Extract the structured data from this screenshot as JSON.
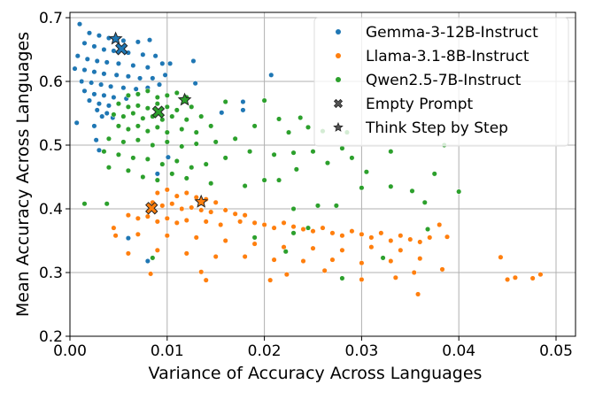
{
  "chart_data": {
    "type": "scatter",
    "xlabel": "Variance of Accuracy Across Languages",
    "ylabel": "Mean Accuracy Across Languages",
    "xlim": [
      0.0,
      0.0505
    ],
    "ylim": [
      0.2,
      0.708
    ],
    "xticks": [
      "0.00",
      "0.01",
      "0.02",
      "0.03",
      "0.04",
      "0.05"
    ],
    "yticks": [
      "0.2",
      "0.3",
      "0.4",
      "0.5",
      "0.6",
      "0.7"
    ],
    "grid": true,
    "legend_placement": "top-right",
    "series": [
      {
        "name": "Gemma-3-12B-Instruct",
        "color": "#1f77b4",
        "points": [
          [
            0.001,
            0.69
          ],
          [
            0.002,
            0.676
          ],
          [
            0.003,
            0.672
          ],
          [
            0.004,
            0.668
          ],
          [
            0.0055,
            0.664
          ],
          [
            0.007,
            0.662
          ],
          [
            0.0082,
            0.665
          ],
          [
            0.0015,
            0.66
          ],
          [
            0.0025,
            0.655
          ],
          [
            0.0035,
            0.65
          ],
          [
            0.0045,
            0.648
          ],
          [
            0.006,
            0.645
          ],
          [
            0.0075,
            0.642
          ],
          [
            0.0088,
            0.64
          ],
          [
            0.0008,
            0.64
          ],
          [
            0.0018,
            0.635
          ],
          [
            0.0028,
            0.632
          ],
          [
            0.0038,
            0.63
          ],
          [
            0.005,
            0.628
          ],
          [
            0.0065,
            0.625
          ],
          [
            0.008,
            0.622
          ],
          [
            0.0095,
            0.628
          ],
          [
            0.0103,
            0.628
          ],
          [
            0.0005,
            0.62
          ],
          [
            0.0015,
            0.618
          ],
          [
            0.0025,
            0.615
          ],
          [
            0.0035,
            0.612
          ],
          [
            0.0048,
            0.61
          ],
          [
            0.006,
            0.608
          ],
          [
            0.0072,
            0.605
          ],
          [
            0.0085,
            0.605
          ],
          [
            0.0098,
            0.61
          ],
          [
            0.0012,
            0.6
          ],
          [
            0.0022,
            0.598
          ],
          [
            0.0032,
            0.595
          ],
          [
            0.0042,
            0.592
          ],
          [
            0.0055,
            0.59
          ],
          [
            0.0068,
            0.588
          ],
          [
            0.008,
            0.59
          ],
          [
            0.0092,
            0.595
          ],
          [
            0.0015,
            0.585
          ],
          [
            0.0025,
            0.58
          ],
          [
            0.0035,
            0.578
          ],
          [
            0.0045,
            0.575
          ],
          [
            0.0058,
            0.573
          ],
          [
            0.007,
            0.58
          ],
          [
            0.002,
            0.57
          ],
          [
            0.003,
            0.565
          ],
          [
            0.004,
            0.562
          ],
          [
            0.0028,
            0.555
          ],
          [
            0.0038,
            0.55
          ],
          [
            0.0033,
            0.545
          ],
          [
            0.0044,
            0.543
          ],
          [
            0.0025,
            0.53
          ],
          [
            0.0007,
            0.535
          ],
          [
            0.0027,
            0.508
          ],
          [
            0.003,
            0.492
          ],
          [
            0.0127,
            0.632
          ],
          [
            0.0129,
            0.597
          ],
          [
            0.0207,
            0.61
          ],
          [
            0.0178,
            0.568
          ],
          [
            0.0178,
            0.555
          ],
          [
            0.0156,
            0.551
          ],
          [
            0.0101,
            0.481
          ],
          [
            0.009,
            0.455
          ],
          [
            0.006,
            0.354
          ],
          [
            0.008,
            0.318
          ]
        ]
      },
      {
        "name": "Llama-3.1-8B-Instruct",
        "color": "#ff7f0e",
        "points": [
          [
            0.009,
            0.425
          ],
          [
            0.01,
            0.43
          ],
          [
            0.011,
            0.42
          ],
          [
            0.012,
            0.425
          ],
          [
            0.013,
            0.418
          ],
          [
            0.014,
            0.415
          ],
          [
            0.015,
            0.41
          ],
          [
            0.0085,
            0.41
          ],
          [
            0.0095,
            0.405
          ],
          [
            0.0105,
            0.408
          ],
          [
            0.0115,
            0.4
          ],
          [
            0.0125,
            0.402
          ],
          [
            0.0135,
            0.398
          ],
          [
            0.0145,
            0.395
          ],
          [
            0.016,
            0.398
          ],
          [
            0.017,
            0.392
          ],
          [
            0.018,
            0.39
          ],
          [
            0.006,
            0.39
          ],
          [
            0.007,
            0.385
          ],
          [
            0.008,
            0.388
          ],
          [
            0.009,
            0.38
          ],
          [
            0.01,
            0.385
          ],
          [
            0.011,
            0.378
          ],
          [
            0.012,
            0.382
          ],
          [
            0.014,
            0.38
          ],
          [
            0.0155,
            0.375
          ],
          [
            0.0175,
            0.38
          ],
          [
            0.019,
            0.378
          ],
          [
            0.02,
            0.375
          ],
          [
            0.021,
            0.37
          ],
          [
            0.022,
            0.378
          ],
          [
            0.023,
            0.372
          ],
          [
            0.024,
            0.368
          ],
          [
            0.025,
            0.365
          ],
          [
            0.026,
            0.37
          ],
          [
            0.027,
            0.362
          ],
          [
            0.028,
            0.358
          ],
          [
            0.029,
            0.365
          ],
          [
            0.03,
            0.36
          ],
          [
            0.031,
            0.355
          ],
          [
            0.032,
            0.362
          ],
          [
            0.033,
            0.35
          ],
          [
            0.034,
            0.358
          ],
          [
            0.035,
            0.352
          ],
          [
            0.036,
            0.348
          ],
          [
            0.037,
            0.355
          ],
          [
            0.038,
            0.375
          ],
          [
            0.0388,
            0.356
          ],
          [
            0.007,
            0.36
          ],
          [
            0.01,
            0.358
          ],
          [
            0.013,
            0.355
          ],
          [
            0.016,
            0.35
          ],
          [
            0.019,
            0.345
          ],
          [
            0.022,
            0.34
          ],
          [
            0.025,
            0.338
          ],
          [
            0.028,
            0.335
          ],
          [
            0.031,
            0.34
          ],
          [
            0.034,
            0.335
          ],
          [
            0.006,
            0.33
          ],
          [
            0.009,
            0.335
          ],
          [
            0.012,
            0.33
          ],
          [
            0.015,
            0.325
          ],
          [
            0.018,
            0.325
          ],
          [
            0.021,
            0.32
          ],
          [
            0.024,
            0.318
          ],
          [
            0.027,
            0.32
          ],
          [
            0.03,
            0.315
          ],
          [
            0.033,
            0.318
          ],
          [
            0.036,
            0.322
          ],
          [
            0.0045,
            0.37
          ],
          [
            0.0047,
            0.358
          ],
          [
            0.0083,
            0.298
          ],
          [
            0.014,
            0.288
          ],
          [
            0.0135,
            0.301
          ],
          [
            0.0206,
            0.288
          ],
          [
            0.0223,
            0.297
          ],
          [
            0.0262,
            0.303
          ],
          [
            0.03,
            0.289
          ],
          [
            0.0335,
            0.292
          ],
          [
            0.0354,
            0.3
          ],
          [
            0.0383,
            0.305
          ],
          [
            0.0443,
            0.324
          ],
          [
            0.045,
            0.289
          ],
          [
            0.0458,
            0.292
          ],
          [
            0.0476,
            0.291
          ],
          [
            0.0484,
            0.297
          ],
          [
            0.0358,
            0.266
          ]
        ]
      },
      {
        "name": "Qwen2.5-7B-Instruct",
        "color": "#2ca02c",
        "points": [
          [
            0.006,
            0.578
          ],
          [
            0.007,
            0.58
          ],
          [
            0.008,
            0.585
          ],
          [
            0.009,
            0.575
          ],
          [
            0.01,
            0.578
          ],
          [
            0.011,
            0.582
          ],
          [
            0.012,
            0.575
          ],
          [
            0.005,
            0.565
          ],
          [
            0.006,
            0.56
          ],
          [
            0.007,
            0.562
          ],
          [
            0.008,
            0.558
          ],
          [
            0.009,
            0.565
          ],
          [
            0.01,
            0.56
          ],
          [
            0.011,
            0.555
          ],
          [
            0.0125,
            0.56
          ],
          [
            0.0045,
            0.548
          ],
          [
            0.0055,
            0.545
          ],
          [
            0.0065,
            0.55
          ],
          [
            0.0075,
            0.542
          ],
          [
            0.0085,
            0.545
          ],
          [
            0.0095,
            0.54
          ],
          [
            0.0105,
            0.545
          ],
          [
            0.012,
            0.54
          ],
          [
            0.0135,
            0.545
          ],
          [
            0.005,
            0.53
          ],
          [
            0.006,
            0.525
          ],
          [
            0.007,
            0.53
          ],
          [
            0.008,
            0.522
          ],
          [
            0.009,
            0.528
          ],
          [
            0.01,
            0.52
          ],
          [
            0.0115,
            0.525
          ],
          [
            0.013,
            0.52
          ],
          [
            0.0145,
            0.53
          ],
          [
            0.004,
            0.51
          ],
          [
            0.0055,
            0.505
          ],
          [
            0.007,
            0.508
          ],
          [
            0.0085,
            0.5
          ],
          [
            0.01,
            0.505
          ],
          [
            0.0115,
            0.498
          ],
          [
            0.013,
            0.502
          ],
          [
            0.015,
            0.505
          ],
          [
            0.017,
            0.51
          ],
          [
            0.0035,
            0.49
          ],
          [
            0.005,
            0.485
          ],
          [
            0.0065,
            0.48
          ],
          [
            0.008,
            0.478
          ],
          [
            0.0095,
            0.47
          ],
          [
            0.011,
            0.475
          ],
          [
            0.0125,
            0.465
          ],
          [
            0.014,
            0.47
          ],
          [
            0.016,
            0.48
          ],
          [
            0.0185,
            0.49
          ],
          [
            0.004,
            0.465
          ],
          [
            0.006,
            0.46
          ],
          [
            0.0075,
            0.45
          ],
          [
            0.009,
            0.445
          ],
          [
            0.0105,
            0.455
          ],
          [
            0.012,
            0.448
          ],
          [
            0.0145,
            0.44
          ],
          [
            0.018,
            0.436
          ],
          [
            0.02,
            0.445
          ],
          [
            0.016,
            0.568
          ],
          [
            0.02,
            0.57
          ],
          [
            0.0215,
            0.541
          ],
          [
            0.0237,
            0.543
          ],
          [
            0.019,
            0.53
          ],
          [
            0.0225,
            0.52
          ],
          [
            0.0245,
            0.528
          ],
          [
            0.026,
            0.522
          ],
          [
            0.0285,
            0.52
          ],
          [
            0.021,
            0.485
          ],
          [
            0.023,
            0.488
          ],
          [
            0.025,
            0.49
          ],
          [
            0.028,
            0.495
          ],
          [
            0.029,
            0.48
          ],
          [
            0.033,
            0.49
          ],
          [
            0.0385,
            0.5
          ],
          [
            0.0233,
            0.462
          ],
          [
            0.0265,
            0.472
          ],
          [
            0.0305,
            0.458
          ],
          [
            0.0375,
            0.455
          ],
          [
            0.0215,
            0.445
          ],
          [
            0.03,
            0.433
          ],
          [
            0.033,
            0.435
          ],
          [
            0.0352,
            0.428
          ],
          [
            0.04,
            0.427
          ],
          [
            0.0365,
            0.41
          ],
          [
            0.0274,
            0.405
          ],
          [
            0.0255,
            0.405
          ],
          [
            0.023,
            0.4
          ],
          [
            0.0015,
            0.408
          ],
          [
            0.0038,
            0.408
          ],
          [
            0.019,
            0.355
          ],
          [
            0.023,
            0.362
          ],
          [
            0.0245,
            0.37
          ],
          [
            0.0222,
            0.333
          ],
          [
            0.0085,
            0.323
          ],
          [
            0.028,
            0.291
          ],
          [
            0.0322,
            0.323
          ],
          [
            0.0368,
            0.368
          ]
        ]
      }
    ],
    "special_markers": [
      {
        "name": "Empty Prompt",
        "symbol": "X",
        "points": [
          {
            "series": "Gemma-3-12B-Instruct",
            "x": 0.0053,
            "y": 0.651
          },
          {
            "series": "Qwen2.5-7B-Instruct",
            "x": 0.0091,
            "y": 0.552
          },
          {
            "series": "Llama-3.1-8B-Instruct",
            "x": 0.0084,
            "y": 0.401
          }
        ]
      },
      {
        "name": "Think Step by Step",
        "symbol": "star",
        "points": [
          {
            "series": "Gemma-3-12B-Instruct",
            "x": 0.0047,
            "y": 0.667
          },
          {
            "series": "Qwen2.5-7B-Instruct",
            "x": 0.0118,
            "y": 0.571
          },
          {
            "series": "Llama-3.1-8B-Instruct",
            "x": 0.0135,
            "y": 0.411
          }
        ]
      }
    ]
  }
}
